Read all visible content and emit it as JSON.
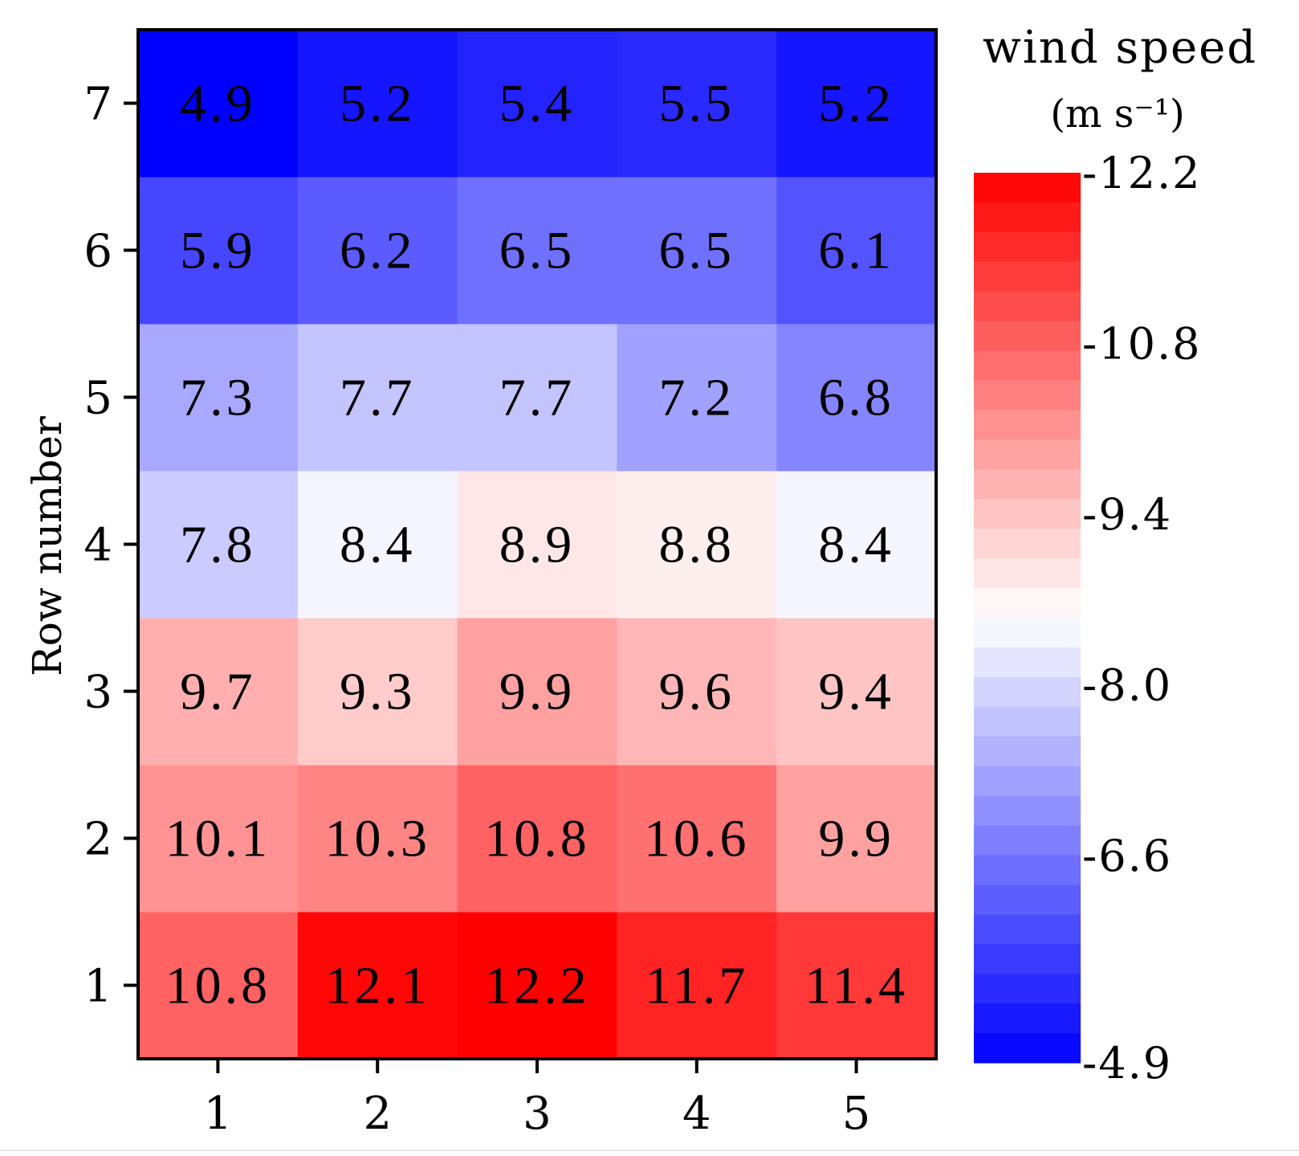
{
  "chart_data": {
    "type": "heatmap",
    "title": "",
    "xlabel": "",
    "ylabel": "Row number",
    "x_categories": [
      "1",
      "2",
      "3",
      "4",
      "5"
    ],
    "y_categories": [
      "1",
      "2",
      "3",
      "4",
      "5",
      "6",
      "7"
    ],
    "cell_labels": [
      [
        "10.8",
        "12.1",
        "12.2",
        "11.7",
        "11.4"
      ],
      [
        "10.1",
        "10.3",
        "10.8",
        "10.6",
        "9.9"
      ],
      [
        "9.7",
        "9.3",
        "9.9",
        "9.6",
        "9.4"
      ],
      [
        "7.8",
        "8.4",
        "8.9",
        "8.8",
        "8.4"
      ],
      [
        "7.3",
        "7.7",
        "7.7",
        "7.2",
        "6.8"
      ],
      [
        "5.9",
        "6.2",
        "6.5",
        "6.5",
        "6.1"
      ],
      [
        "4.9",
        "5.2",
        "5.4",
        "5.5",
        "5.2"
      ]
    ],
    "values": [
      [
        10.8,
        12.1,
        12.2,
        11.7,
        11.4
      ],
      [
        10.1,
        10.3,
        10.8,
        10.6,
        9.9
      ],
      [
        9.7,
        9.3,
        9.9,
        9.6,
        9.4
      ],
      [
        7.8,
        8.4,
        8.9,
        8.8,
        8.4
      ],
      [
        7.3,
        7.7,
        7.7,
        7.2,
        6.8
      ],
      [
        5.9,
        6.2,
        6.5,
        6.5,
        6.1
      ],
      [
        4.9,
        5.2,
        5.4,
        5.5,
        5.2
      ]
    ],
    "colorbar": {
      "title": "wind speed",
      "units": "(m s⁻¹)",
      "min": 4.9,
      "max": 12.2,
      "mid": 8.55,
      "tick_labels": [
        "-12.2",
        "-10.8",
        "-9.4",
        "-8.0",
        "-6.6",
        "-4.9"
      ],
      "tick_values": [
        12.2,
        10.8,
        9.4,
        8.0,
        6.6,
        4.9
      ],
      "levels": 30,
      "colors": {
        "low": "#0000ff",
        "mid": "#ffffff",
        "high": "#ff0000"
      }
    },
    "grid": false
  }
}
